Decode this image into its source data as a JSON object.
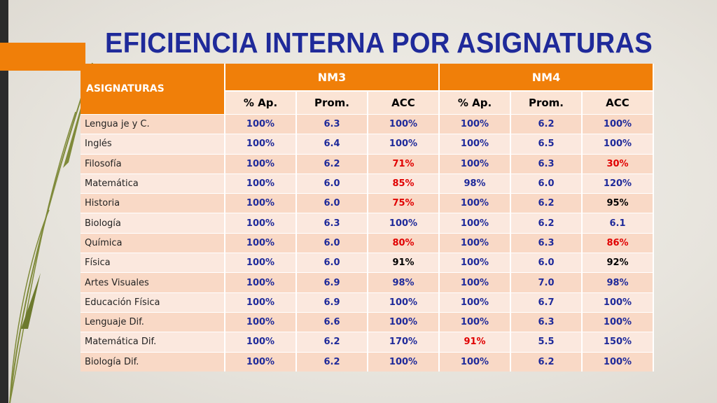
{
  "title": "EFICIENCIA INTERNA POR ASIGNATURAS",
  "colors": {
    "header_orange": "#f07f09",
    "title_blue": "#1f2a9a",
    "value_blue": "#1f2a9a",
    "alert_red": "#e00000"
  },
  "table": {
    "subject_header": "ASIGNATURAS",
    "groups": [
      "NM3",
      "NM4"
    ],
    "subheaders": [
      "% Ap.",
      "Prom.",
      "ACC",
      "% Ap.",
      "Prom.",
      "ACC"
    ],
    "rows": [
      {
        "subject": "Lengua je y C.",
        "values": [
          "100%",
          "6.3",
          "100%",
          "100%",
          "6.2",
          "100%"
        ],
        "colors": [
          "b",
          "b",
          "b",
          "b",
          "b",
          "b"
        ]
      },
      {
        "subject": "Inglés",
        "values": [
          "100%",
          "6.4",
          "100%",
          "100%",
          "6.5",
          "100%"
        ],
        "colors": [
          "b",
          "b",
          "b",
          "b",
          "b",
          "b"
        ]
      },
      {
        "subject": "Filosofía",
        "values": [
          "100%",
          "6.2",
          "71%",
          "100%",
          "6.3",
          "30%"
        ],
        "colors": [
          "b",
          "b",
          "r",
          "b",
          "b",
          "r"
        ]
      },
      {
        "subject": "Matemática",
        "values": [
          "100%",
          "6.0",
          "85%",
          "98%",
          "6.0",
          "120%"
        ],
        "colors": [
          "b",
          "b",
          "r",
          "b",
          "b",
          "b"
        ]
      },
      {
        "subject": "Historia",
        "values": [
          "100%",
          "6.0",
          "75%",
          "100%",
          "6.2",
          "95%"
        ],
        "colors": [
          "b",
          "b",
          "r",
          "b",
          "b",
          "k"
        ]
      },
      {
        "subject": "Biología",
        "values": [
          "100%",
          "6.3",
          "100%",
          "100%",
          "6.2",
          "6.1"
        ],
        "colors": [
          "b",
          "b",
          "b",
          "b",
          "b",
          "b"
        ]
      },
      {
        "subject": "Química",
        "values": [
          "100%",
          "6.0",
          "80%",
          "100%",
          "6.3",
          "86%"
        ],
        "colors": [
          "b",
          "b",
          "r",
          "b",
          "b",
          "r"
        ]
      },
      {
        "subject": "Física",
        "values": [
          "100%",
          "6.0",
          "91%",
          "100%",
          "6.0",
          "92%"
        ],
        "colors": [
          "b",
          "b",
          "k",
          "b",
          "b",
          "k"
        ]
      },
      {
        "subject": "Artes Visuales",
        "values": [
          "100%",
          "6.9",
          "98%",
          "100%",
          "7.0",
          "98%"
        ],
        "colors": [
          "b",
          "b",
          "b",
          "b",
          "b",
          "b"
        ]
      },
      {
        "subject": "Educación Física",
        "values": [
          "100%",
          "6.9",
          "100%",
          "100%",
          "6.7",
          "100%"
        ],
        "colors": [
          "b",
          "b",
          "b",
          "b",
          "b",
          "b"
        ]
      },
      {
        "subject": "Lenguaje Dif.",
        "values": [
          "100%",
          "6.6",
          "100%",
          "100%",
          "6.3",
          "100%"
        ],
        "colors": [
          "b",
          "b",
          "b",
          "b",
          "b",
          "b"
        ]
      },
      {
        "subject": "Matemática Dif.",
        "values": [
          "100%",
          "6.2",
          "170%",
          "91%",
          "5.5",
          "150%"
        ],
        "colors": [
          "b",
          "b",
          "b",
          "r",
          "b",
          "b"
        ]
      },
      {
        "subject": "Biología Dif.",
        "values": [
          "100%",
          "6.2",
          "100%",
          "100%",
          "6.2",
          "100%"
        ],
        "colors": [
          "b",
          "b",
          "b",
          "b",
          "b",
          "b"
        ]
      }
    ]
  }
}
